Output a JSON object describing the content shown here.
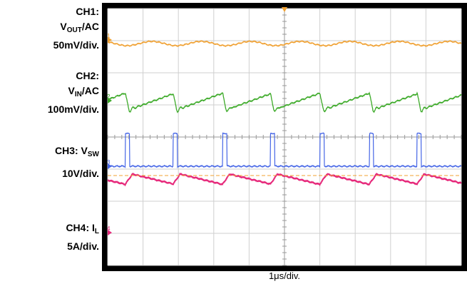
{
  "chart_data": {
    "type": "line",
    "timebase": "1μs/div.",
    "divisions": {
      "horizontal": 10,
      "vertical": 8
    },
    "grid": true,
    "channels": [
      {
        "id": "CH1",
        "label_prefix": "CH1:",
        "signal": "V",
        "signal_sub": "OUT",
        "signal_suffix": "/AC",
        "scale": "50mV/div.",
        "color": "#f0a030",
        "marker": "1"
      },
      {
        "id": "CH2",
        "label_prefix": "CH2:",
        "signal": "V",
        "signal_sub": "IN",
        "signal_suffix": "/AC",
        "scale": "100mV/div.",
        "color": "#3caa28",
        "marker": "2"
      },
      {
        "id": "CH3",
        "label_prefix": "CH3: ",
        "signal": "V",
        "signal_sub": "SW",
        "signal_suffix": "",
        "scale": "10V/div.",
        "color": "#4666e6",
        "marker": "3"
      },
      {
        "id": "CH4",
        "label_prefix": "CH4: ",
        "signal": "I",
        "signal_sub": "L",
        "signal_suffix": "",
        "scale": "5A/div.",
        "color": "#e6287a",
        "marker": "4"
      }
    ],
    "switching_events_div": [
      0.5,
      1.85,
      3.25,
      4.6,
      6.0,
      7.4,
      8.75
    ],
    "pulse_width_div": 0.12
  }
}
